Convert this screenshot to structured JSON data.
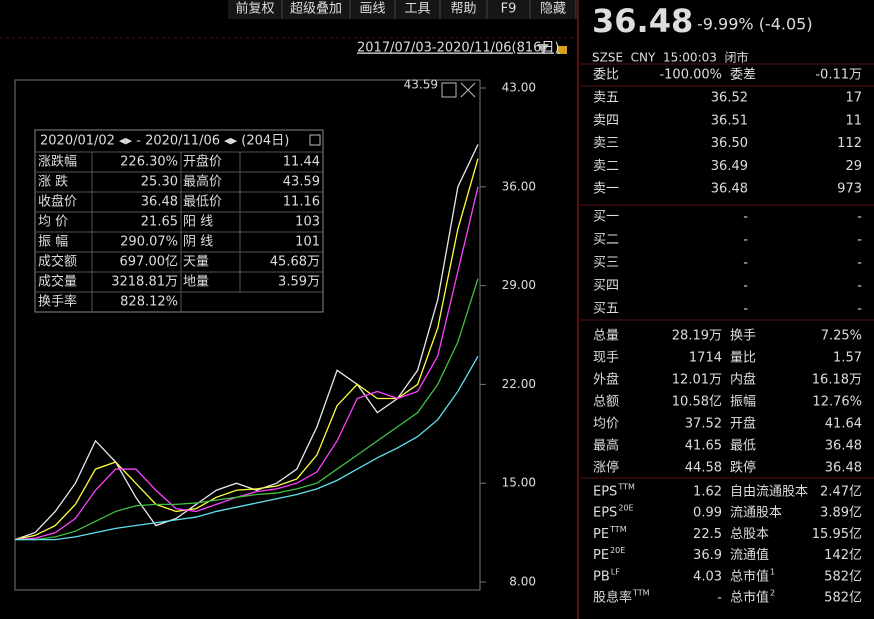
{
  "toolbar": [
    "前复权",
    "超级叠加",
    "画线",
    "工具",
    "帮助",
    "F9",
    "隐藏"
  ],
  "chart_data": {
    "type": "line",
    "date_range": "2017/07/03-2020/11/06(816日)",
    "annotation": "43.59",
    "ylim": [
      8,
      43
    ],
    "yticks": [
      {
        "value": 43,
        "label": "43.00"
      },
      {
        "value": 36,
        "label": "36.00"
      },
      {
        "value": 29,
        "label": "29.00"
      },
      {
        "value": 22,
        "label": "22.00"
      },
      {
        "value": 15,
        "label": "15.00"
      },
      {
        "value": 8,
        "label": "8.00"
      }
    ],
    "series": [
      {
        "color": "#e8e8e8",
        "values": [
          11,
          11.5,
          13,
          15,
          18,
          16.5,
          14,
          12,
          12.5,
          13.5,
          14.5,
          15,
          14.5,
          15,
          16,
          19,
          23,
          22,
          20,
          21,
          23,
          28,
          36,
          39
        ]
      },
      {
        "color": "#ffff40",
        "values": [
          11,
          11.3,
          12,
          13.5,
          16,
          16.5,
          15,
          13.5,
          13,
          13.2,
          14,
          14.5,
          14.6,
          14.8,
          15.3,
          17,
          20.5,
          22,
          21,
          21,
          22,
          26,
          33,
          38
        ]
      },
      {
        "color": "#ff40ff",
        "values": [
          11,
          11.1,
          11.5,
          12.5,
          14.5,
          16,
          16,
          14.5,
          13.2,
          13,
          13.5,
          14,
          14.4,
          14.6,
          15,
          15.8,
          18,
          21,
          21.5,
          21,
          21.5,
          24,
          30,
          36
        ]
      },
      {
        "color": "#40c040",
        "values": [
          11,
          11,
          11.2,
          11.6,
          12.3,
          13,
          13.4,
          13.5,
          13.5,
          13.6,
          13.8,
          14,
          14.2,
          14.3,
          14.6,
          15,
          16,
          17,
          18,
          19,
          20,
          22,
          25,
          29.5
        ]
      },
      {
        "color": "#60e0f0",
        "values": [
          11,
          11,
          11,
          11.2,
          11.5,
          11.8,
          12,
          12.2,
          12.4,
          12.6,
          13,
          13.3,
          13.6,
          13.9,
          14.2,
          14.6,
          15.2,
          16,
          16.8,
          17.5,
          18.3,
          19.5,
          21.5,
          24
        ]
      }
    ]
  },
  "info_box": {
    "header": "2020/01/02 ◂▸ - 2020/11/06 ◂▸ (204日)",
    "rows": [
      [
        {
          "text": "涨跌幅"
        },
        {
          "text": "226.30%",
          "color": "#ff4040"
        },
        {
          "text": "开盘价"
        },
        {
          "text": "11.44",
          "color": "#ff4040"
        }
      ],
      [
        {
          "text": "涨 跌"
        },
        {
          "text": "25.30",
          "color": "#ff4040"
        },
        {
          "text": "最高价"
        },
        {
          "text": "43.59",
          "color": "#ff4040"
        }
      ],
      [
        {
          "text": "收盘价"
        },
        {
          "text": "36.48",
          "color": "#ff4040"
        },
        {
          "text": "最低价"
        },
        {
          "text": "11.16",
          "color": "#ff4040"
        }
      ],
      [
        {
          "text": "均 价"
        },
        {
          "text": "21.65",
          "color": "#ff4040"
        },
        {
          "text": "阳 线"
        },
        {
          "text": "103",
          "color": "#ff4040"
        }
      ],
      [
        {
          "text": "振 幅"
        },
        {
          "text": "290.07%",
          "color": "#ff4040"
        },
        {
          "text": "阴 线"
        },
        {
          "text": "101",
          "color": "#40d040"
        }
      ],
      [
        {
          "text": "成交额"
        },
        {
          "text": "697.00亿"
        },
        {
          "text": "天量"
        },
        {
          "text": "45.68万"
        }
      ],
      [
        {
          "text": "成交量"
        },
        {
          "text": "3218.81万"
        },
        {
          "text": "地量"
        },
        {
          "text": "3.59万"
        }
      ],
      [
        {
          "text": "换手率"
        },
        {
          "text": "828.12%"
        }
      ]
    ]
  },
  "quote": {
    "price": "36.48",
    "change": "-9.99% (-4.05)",
    "meta": "SZSE  CNY  15:00:03  闭市",
    "ratio": [
      {
        "text": "委比"
      },
      {
        "text": "-100.00%",
        "color": "#30d030"
      },
      {
        "text": "委差"
      },
      {
        "text": "-0.11万",
        "color": "#30d030"
      }
    ],
    "orderbook": [
      [
        {
          "text": "卖五"
        },
        {
          "text": "36.52",
          "color": "#30d030"
        },
        {
          "text": "17"
        }
      ],
      [
        {
          "text": "卖四"
        },
        {
          "text": "36.51",
          "color": "#30d030"
        },
        {
          "text": "11"
        }
      ],
      [
        {
          "text": "卖三"
        },
        {
          "text": "36.50",
          "color": "#30d030"
        },
        {
          "text": "112"
        }
      ],
      [
        {
          "text": "卖二"
        },
        {
          "text": "36.49",
          "color": "#30d030"
        },
        {
          "text": "29"
        }
      ],
      [
        {
          "text": "卖一"
        },
        {
          "text": "36.48",
          "color": "#30d030"
        },
        {
          "text": "973"
        }
      ],
      [
        {
          "text": "买一"
        },
        {
          "text": "-"
        },
        {
          "text": "-"
        }
      ],
      [
        {
          "text": "买二"
        },
        {
          "text": "-"
        },
        {
          "text": "-"
        }
      ],
      [
        {
          "text": "买三"
        },
        {
          "text": "-"
        },
        {
          "text": "-"
        }
      ],
      [
        {
          "text": "买四"
        },
        {
          "text": "-"
        },
        {
          "text": "-"
        }
      ],
      [
        {
          "text": "买五"
        },
        {
          "text": "-"
        },
        {
          "text": "-"
        }
      ]
    ],
    "stats": [
      [
        {
          "text": "总量"
        },
        {
          "text": "28.19万"
        },
        {
          "text": "换手"
        },
        {
          "text": "7.25%"
        }
      ],
      [
        {
          "text": "现手"
        },
        {
          "text": "1714"
        },
        {
          "text": "量比"
        },
        {
          "text": "1.57"
        }
      ],
      [
        {
          "text": "外盘"
        },
        {
          "text": "12.01万",
          "color": "#ff4040"
        },
        {
          "text": "内盘"
        },
        {
          "text": "16.18万",
          "color": "#30d030"
        }
      ],
      [
        {
          "text": "总额"
        },
        {
          "text": "10.58亿"
        },
        {
          "text": "振幅"
        },
        {
          "text": "12.76%"
        }
      ],
      [
        {
          "text": "均价"
        },
        {
          "text": "37.52",
          "color": "#30d030"
        },
        {
          "text": "开盘"
        },
        {
          "text": "41.64",
          "color": "#ff4040"
        }
      ],
      [
        {
          "text": "最高"
        },
        {
          "text": "41.65",
          "color": "#ff4040"
        },
        {
          "text": "最低"
        },
        {
          "text": "36.48",
          "color": "#30d030"
        }
      ],
      [
        {
          "text": "涨停"
        },
        {
          "text": "44.58",
          "color": "#ff4040"
        },
        {
          "text": "跌停"
        },
        {
          "text": "36.48",
          "color": "#30d030"
        }
      ]
    ],
    "fundamentals": [
      [
        {
          "text": "EPS",
          "sup": "TTM"
        },
        {
          "text": "1.62"
        },
        {
          "text": "自由流通股本"
        },
        {
          "text": "2.47亿"
        }
      ],
      [
        {
          "text": "EPS",
          "sup": "20E"
        },
        {
          "text": "0.99"
        },
        {
          "text": "流通股本"
        },
        {
          "text": "3.89亿"
        }
      ],
      [
        {
          "text": "PE",
          "sup": "TTM"
        },
        {
          "text": "22.5"
        },
        {
          "text": "总股本"
        },
        {
          "text": "15.95亿"
        }
      ],
      [
        {
          "text": "PE",
          "sup": "20E"
        },
        {
          "text": "36.9"
        },
        {
          "text": "流通值"
        },
        {
          "text": "142亿"
        }
      ],
      [
        {
          "text": "PB",
          "sup": "LF"
        },
        {
          "text": "4.03"
        },
        {
          "text": "总市值",
          "sup": "1"
        },
        {
          "text": "582亿"
        }
      ],
      [
        {
          "text": "股息率",
          "sup": "TTM"
        },
        {
          "text": "-"
        },
        {
          "text": "总市值",
          "sup": "2"
        },
        {
          "text": "582亿"
        }
      ]
    ]
  }
}
